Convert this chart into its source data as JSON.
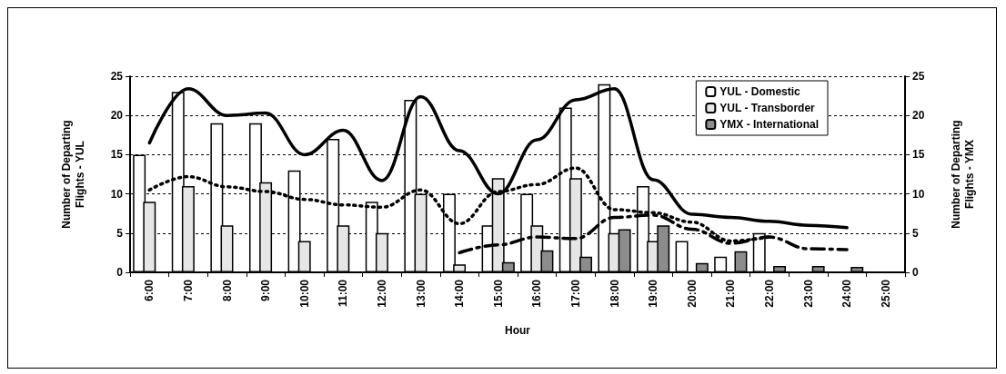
{
  "chart_data": {
    "type": "bar",
    "xlabel": "Hour",
    "ylabel": "Number of Departing\nFlights - YUL",
    "y2label": "Number of Departing\nFlights - YMX",
    "categories": [
      "6:00",
      "7:00",
      "8:00",
      "9:00",
      "10:00",
      "11:00",
      "12:00",
      "13:00",
      "14:00",
      "15:00",
      "16:00",
      "17:00",
      "18:00",
      "19:00",
      "20:00",
      "21:00",
      "22:00",
      "23:00",
      "24:00",
      "25:00"
    ],
    "series": [
      {
        "name": "YUL - Domestic",
        "color": "#ffffff",
        "values": [
          15,
          23,
          19,
          19,
          13,
          17,
          9,
          22,
          10,
          6,
          10,
          21,
          24,
          11,
          4,
          2,
          5,
          null,
          null,
          null
        ]
      },
      {
        "name": "YUL - Transborder",
        "color": "#e6e6e6",
        "values": [
          9,
          11,
          6,
          11.5,
          4,
          6,
          5,
          10,
          1,
          12,
          6,
          12,
          5,
          4,
          null,
          null,
          null,
          null,
          null,
          null
        ]
      },
      {
        "name": "YMX - International",
        "color": "#8c8c8c",
        "values": [
          null,
          null,
          null,
          null,
          null,
          null,
          null,
          null,
          null,
          1.3,
          2.8,
          2,
          5.5,
          6,
          1.2,
          2.7,
          0.8,
          0.8,
          0.7,
          null
        ]
      },
      {
        "type": "line",
        "color": "#000000",
        "line_style": "solid",
        "values": [
          16.5,
          23.4,
          20,
          20.3,
          15,
          18.1,
          11.7,
          22.4,
          15.5,
          10,
          16.9,
          22,
          23.4,
          11.8,
          7.4,
          7,
          6.5,
          6,
          5.7,
          null
        ]
      },
      {
        "type": "line",
        "color": "#000000",
        "line_style": "dotted",
        "values": [
          10.5,
          12.2,
          10.9,
          10.3,
          9.3,
          8.6,
          8.3,
          10.5,
          6.2,
          10.3,
          11.2,
          13.3,
          8,
          7.6,
          6.4,
          4,
          4.5,
          null,
          null,
          null
        ]
      },
      {
        "type": "line",
        "color": "#000000",
        "line_style": "dashed",
        "values": [
          null,
          null,
          null,
          null,
          null,
          null,
          null,
          null,
          2.5,
          3.5,
          4.5,
          4.3,
          7,
          7.3,
          5.5,
          3.7,
          4.5,
          3,
          2.9,
          null
        ]
      }
    ],
    "ylim": [
      0,
      25
    ],
    "yticks": [
      0,
      5,
      10,
      15,
      20,
      25
    ],
    "y2lim": [
      0,
      25
    ],
    "y2ticks": [
      0,
      5,
      10,
      15,
      20,
      25
    ],
    "grid": "y",
    "legend": "top right",
    "marker": "none"
  }
}
